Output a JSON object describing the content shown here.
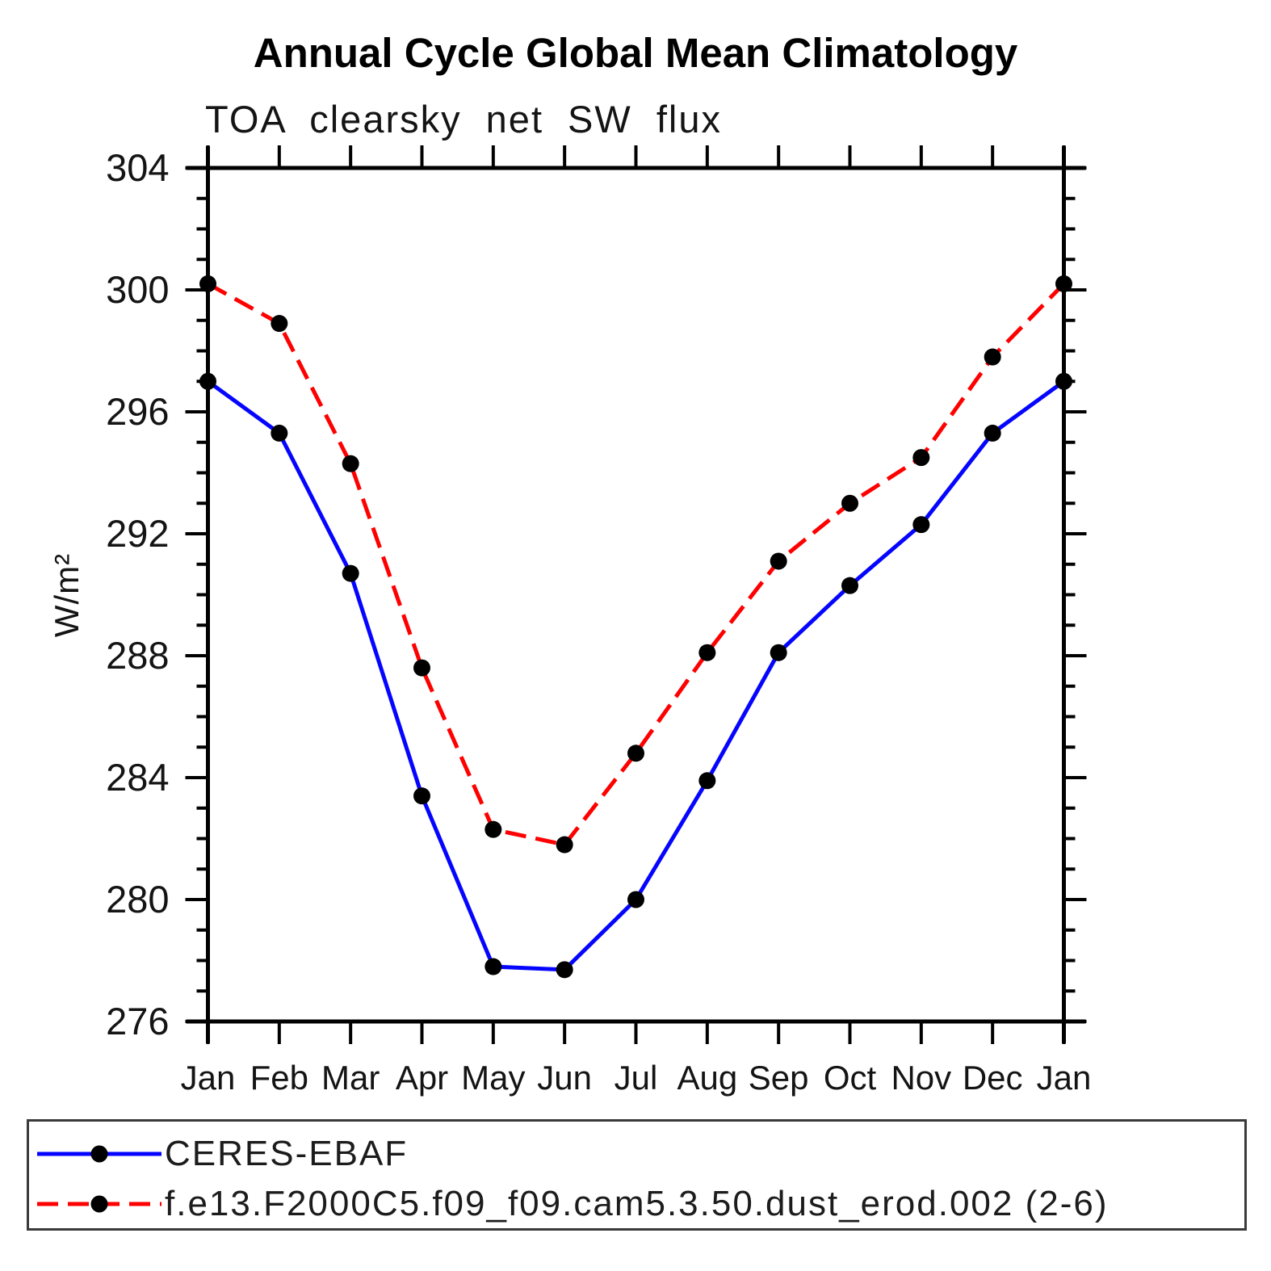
{
  "chart_data": {
    "type": "line",
    "title": "Annual Cycle Global Mean Climatology",
    "subtitle": "TOA clearsky net SW flux",
    "ylabel": "W/m²",
    "xlabel": "",
    "categories": [
      "Jan",
      "Feb",
      "Mar",
      "Apr",
      "May",
      "Jun",
      "Jul",
      "Aug",
      "Sep",
      "Oct",
      "Nov",
      "Dec",
      "Jan"
    ],
    "ylim": [
      276,
      304
    ],
    "y_major_step": 4,
    "y_minor_step": 1,
    "grid": false,
    "legend_position": "bottom",
    "series": [
      {
        "name": "CERES-EBAF",
        "color": "#0505ff",
        "style": "solid",
        "marker": "filled-circle",
        "marker_color": "#000000",
        "values": [
          297.0,
          295.3,
          290.7,
          283.4,
          277.8,
          277.7,
          280.0,
          283.9,
          288.1,
          290.3,
          292.3,
          295.3,
          297.0
        ]
      },
      {
        "name": "f.e13.F2000C5.f09_f09.cam5.3.50.dust_erod.002 (2-6)",
        "color": "#ff0000",
        "style": "dashed",
        "marker": "filled-circle",
        "marker_color": "#000000",
        "values": [
          300.2,
          298.9,
          294.3,
          287.6,
          282.3,
          281.8,
          284.8,
          288.1,
          291.1,
          293.0,
          294.5,
          297.8,
          300.2
        ]
      }
    ]
  },
  "colors": {
    "axis": "#000000",
    "tick_label": "#141414",
    "background": "#ffffff"
  }
}
